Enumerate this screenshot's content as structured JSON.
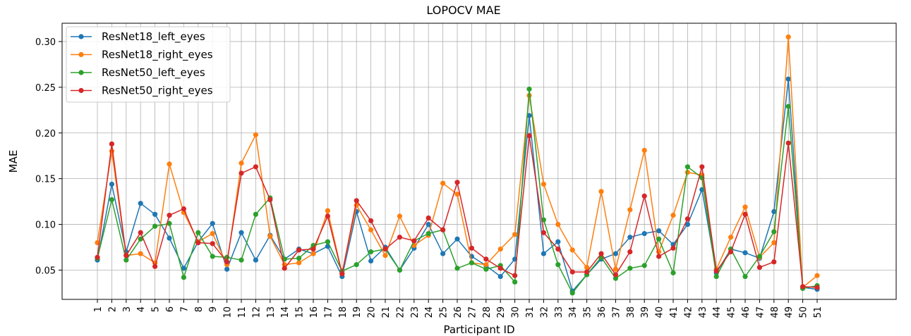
{
  "chart_data": {
    "type": "line",
    "title": "LOPOCV MAE",
    "xlabel": "Participant ID",
    "ylabel": "MAE",
    "grid": true,
    "legend_position": "top-left",
    "ylim": [
      0.018,
      0.32
    ],
    "yticks": [
      "0.05",
      "0.10",
      "0.15",
      "0.20",
      "0.25",
      "0.30"
    ],
    "categories": [
      "1",
      "2",
      "3",
      "4",
      "5",
      "6",
      "7",
      "8",
      "9",
      "10",
      "11",
      "12",
      "13",
      "14",
      "15",
      "16",
      "17",
      "18",
      "19",
      "20",
      "21",
      "22",
      "23",
      "24",
      "25",
      "26",
      "27",
      "28",
      "29",
      "30",
      "31",
      "32",
      "33",
      "34",
      "35",
      "36",
      "37",
      "38",
      "39",
      "40",
      "41",
      "42",
      "43",
      "44",
      "45",
      "46",
      "47",
      "48",
      "49",
      "50",
      "51"
    ],
    "series": [
      {
        "name": "ResNet18_left_eyes",
        "color": "#1f77b4",
        "values": [
          0.061,
          0.144,
          0.07,
          0.123,
          0.111,
          0.085,
          0.052,
          0.081,
          0.101,
          0.051,
          0.091,
          0.061,
          0.088,
          0.062,
          0.073,
          0.068,
          0.076,
          0.043,
          0.114,
          0.06,
          0.075,
          0.05,
          0.074,
          0.1,
          0.068,
          0.084,
          0.065,
          0.055,
          0.043,
          0.062,
          0.219,
          0.068,
          0.081,
          0.027,
          0.045,
          0.062,
          0.068,
          0.086,
          0.09,
          0.093,
          0.078,
          0.1,
          0.138,
          0.047,
          0.073,
          0.069,
          0.063,
          0.114,
          0.259,
          0.031,
          0.029
        ]
      },
      {
        "name": "ResNet18_right_eyes",
        "color": "#ff7f0e",
        "values": [
          0.08,
          0.18,
          0.066,
          0.068,
          0.058,
          0.166,
          0.113,
          0.081,
          0.09,
          0.056,
          0.167,
          0.198,
          0.087,
          0.056,
          0.058,
          0.068,
          0.115,
          0.046,
          0.121,
          0.094,
          0.066,
          0.109,
          0.077,
          0.088,
          0.145,
          0.133,
          0.058,
          0.056,
          0.073,
          0.089,
          0.241,
          0.144,
          0.1,
          0.072,
          0.053,
          0.136,
          0.051,
          0.116,
          0.181,
          0.07,
          0.11,
          0.157,
          0.154,
          0.051,
          0.086,
          0.119,
          0.064,
          0.08,
          0.305,
          0.031,
          0.044
        ]
      },
      {
        "name": "ResNet50_left_eyes",
        "color": "#2ca02c",
        "values": [
          0.063,
          0.127,
          0.061,
          0.084,
          0.098,
          0.101,
          0.042,
          0.091,
          0.065,
          0.064,
          0.061,
          0.111,
          0.129,
          0.062,
          0.063,
          0.077,
          0.081,
          0.049,
          0.056,
          0.07,
          0.073,
          0.05,
          0.082,
          0.09,
          0.094,
          0.052,
          0.058,
          0.051,
          0.055,
          0.037,
          0.248,
          0.105,
          0.056,
          0.025,
          0.045,
          0.064,
          0.041,
          0.052,
          0.055,
          0.084,
          0.047,
          0.163,
          0.151,
          0.043,
          0.073,
          0.043,
          0.065,
          0.092,
          0.229,
          0.03,
          0.033
        ]
      },
      {
        "name": "ResNet50_right_eyes",
        "color": "#d62728",
        "values": [
          0.064,
          0.188,
          0.066,
          0.091,
          0.054,
          0.11,
          0.117,
          0.08,
          0.079,
          0.059,
          0.156,
          0.163,
          0.127,
          0.052,
          0.072,
          0.073,
          0.109,
          0.046,
          0.126,
          0.104,
          0.073,
          0.086,
          0.082,
          0.107,
          0.094,
          0.146,
          0.074,
          0.062,
          0.052,
          0.044,
          0.197,
          0.091,
          0.073,
          0.048,
          0.048,
          0.068,
          0.045,
          0.07,
          0.131,
          0.065,
          0.074,
          0.106,
          0.163,
          0.049,
          0.07,
          0.111,
          0.053,
          0.059,
          0.189,
          0.032,
          0.031
        ]
      }
    ]
  }
}
